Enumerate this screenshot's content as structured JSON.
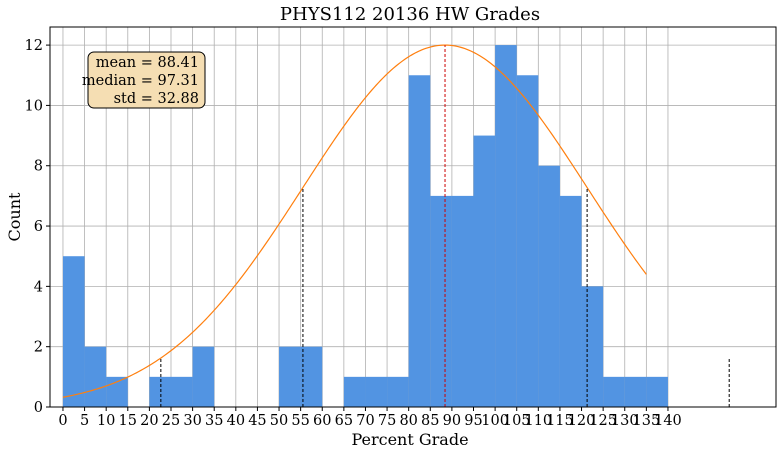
{
  "chart_data": {
    "type": "bar",
    "title": "PHYS112 20136 HW Grades",
    "xlabel": "Percent Grade",
    "ylabel": "Count",
    "xlim": [
      -3,
      165
    ],
    "ylim": [
      0,
      12.6
    ],
    "grid": true,
    "bin_width": 5,
    "bins": [
      {
        "start": 0,
        "count": 5
      },
      {
        "start": 5,
        "count": 2
      },
      {
        "start": 10,
        "count": 1
      },
      {
        "start": 15,
        "count": 0
      },
      {
        "start": 20,
        "count": 1
      },
      {
        "start": 25,
        "count": 1
      },
      {
        "start": 30,
        "count": 2
      },
      {
        "start": 35,
        "count": 0
      },
      {
        "start": 40,
        "count": 0
      },
      {
        "start": 45,
        "count": 0
      },
      {
        "start": 50,
        "count": 2
      },
      {
        "start": 55,
        "count": 2
      },
      {
        "start": 60,
        "count": 0
      },
      {
        "start": 65,
        "count": 1
      },
      {
        "start": 70,
        "count": 1
      },
      {
        "start": 75,
        "count": 1
      },
      {
        "start": 80,
        "count": 11
      },
      {
        "start": 85,
        "count": 7
      },
      {
        "start": 90,
        "count": 7
      },
      {
        "start": 95,
        "count": 9
      },
      {
        "start": 100,
        "count": 12
      },
      {
        "start": 105,
        "count": 11
      },
      {
        "start": 110,
        "count": 8
      },
      {
        "start": 115,
        "count": 7
      },
      {
        "start": 120,
        "count": 4
      },
      {
        "start": 125,
        "count": 1
      },
      {
        "start": 130,
        "count": 1
      },
      {
        "start": 135,
        "count": 1
      }
    ],
    "xticks": [
      0,
      5,
      10,
      15,
      20,
      25,
      30,
      35,
      40,
      45,
      50,
      55,
      60,
      65,
      70,
      75,
      80,
      85,
      90,
      95,
      100,
      105,
      110,
      115,
      120,
      125,
      130,
      135,
      140
    ],
    "yticks": [
      0,
      2,
      4,
      6,
      8,
      10,
      12
    ],
    "bar_color": "#5294e2",
    "curve_color": "#ff7f0e",
    "mean_line_color": "#cc0000",
    "std_line_color": "#000000",
    "stats_box": {
      "mean_label": "mean = 88.41",
      "median_label": "median = 97.31",
      "std_label": "std = 32.88",
      "background": "#f5deb3"
    },
    "normal_fit": {
      "mean": 88.41,
      "std": 32.88,
      "peak": 12,
      "x_range": [
        0,
        135
      ]
    },
    "vertical_lines": [
      {
        "x": 22.65,
        "height": 1.62,
        "kind": "std"
      },
      {
        "x": 55.53,
        "height": 7.28,
        "kind": "std"
      },
      {
        "x": 88.41,
        "height": 12,
        "kind": "mean"
      },
      {
        "x": 121.29,
        "height": 7.28,
        "kind": "std"
      },
      {
        "x": 154.17,
        "height": 1.62,
        "kind": "std"
      }
    ]
  }
}
